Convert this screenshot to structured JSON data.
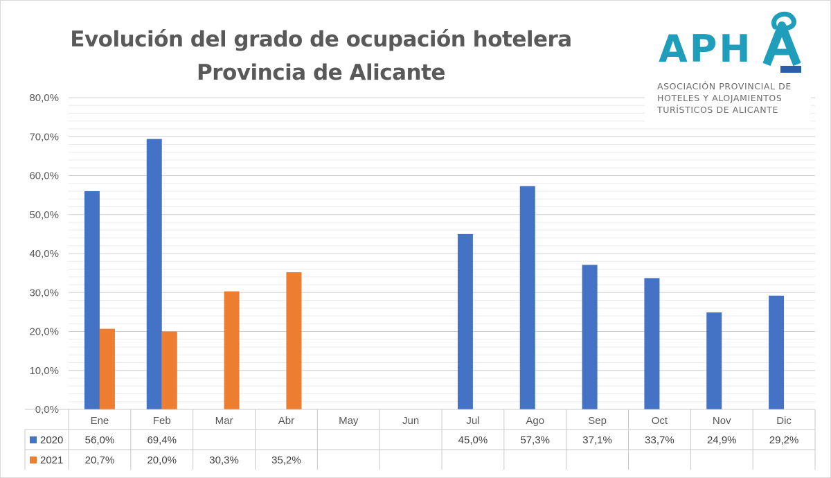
{
  "title_line1": "Evolución del grado de ocupación hotelera",
  "title_line2": "Provincia de Alicante",
  "logo": {
    "name": "APHA",
    "line1": "ASOCIACIÓN PROVINCIAL DE",
    "line2": "HOTELES Y ALOJAMIENTOS",
    "line3": "TURÍSTICOS DE ALICANTE"
  },
  "colors": {
    "s2020": "#4472C4",
    "s2021": "#ED7D31",
    "logo_teal": "#1E9EBB",
    "logo_blue": "#2B5DA8"
  },
  "chart_data": {
    "type": "bar",
    "title": "Evolución del grado de ocupación hotelera Provincia de Alicante",
    "categories": [
      "Ene",
      "Feb",
      "Mar",
      "Abr",
      "May",
      "Jun",
      "Jul",
      "Ago",
      "Sep",
      "Oct",
      "Nov",
      "Dic"
    ],
    "series": [
      {
        "name": "2020",
        "values": [
          56.0,
          69.4,
          null,
          null,
          null,
          null,
          45.0,
          57.3,
          37.1,
          33.7,
          24.9,
          29.2
        ]
      },
      {
        "name": "2021",
        "values": [
          20.7,
          20.0,
          30.3,
          35.2,
          null,
          null,
          null,
          null,
          null,
          null,
          null,
          null
        ]
      }
    ],
    "value_labels": [
      [
        "56,0%",
        "69,4%",
        "",
        "",
        "",
        "",
        "45,0%",
        "57,3%",
        "37,1%",
        "33,7%",
        "24,9%",
        "29,2%"
      ],
      [
        "20,7%",
        "20,0%",
        "30,3%",
        "35,2%",
        "",
        "",
        "",
        "",
        "",
        "",
        "",
        ""
      ]
    ],
    "yticks": [
      0,
      10,
      20,
      30,
      40,
      50,
      60,
      70,
      80
    ],
    "ytick_labels": [
      "0,0%",
      "10,0%",
      "20,0%",
      "30,0%",
      "40,0%",
      "50,0%",
      "60,0%",
      "70,0%",
      "80,0%"
    ],
    "ylim": [
      0,
      80
    ],
    "grid": true,
    "legend": "data table"
  }
}
